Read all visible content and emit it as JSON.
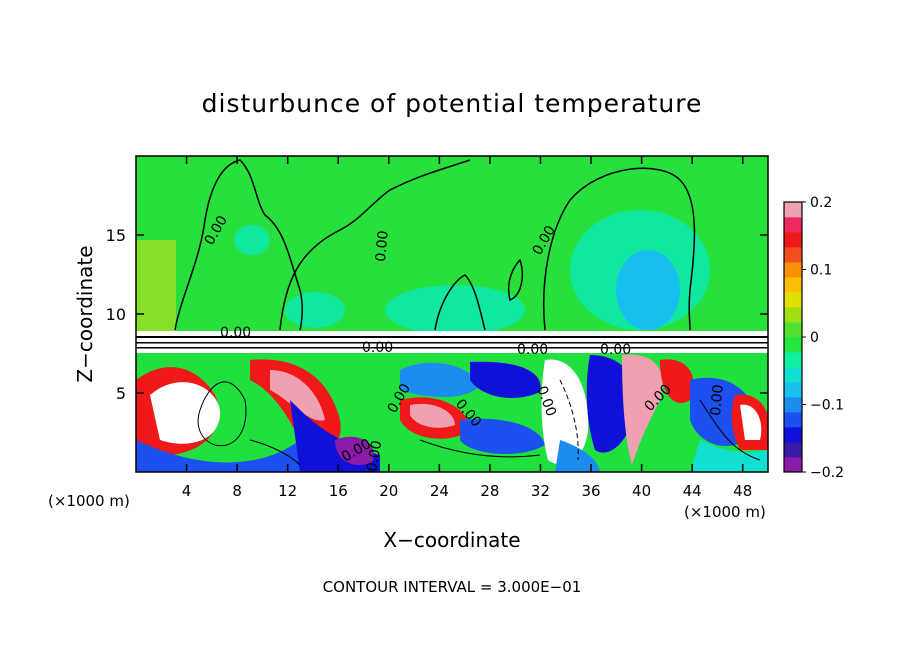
{
  "chart_data": {
    "type": "heatmap",
    "title": "disturbunce of potential temperature",
    "xlabel": "X−coordinate",
    "ylabel": "Z−coordinate",
    "x_unit_left": "(×1000 m)",
    "x_unit_right": "(×1000 m)",
    "footer": "CONTOUR INTERVAL = 3.000E−01",
    "xlim": [
      0,
      50
    ],
    "ylim": [
      0,
      20
    ],
    "x_ticks": [
      4,
      8,
      12,
      16,
      20,
      24,
      28,
      32,
      36,
      40,
      44,
      48
    ],
    "x_tick_labels": [
      "4",
      "8",
      "12",
      "16",
      "20",
      "24",
      "28",
      "32",
      "36",
      "40",
      "44",
      "48"
    ],
    "y_ticks": [
      5,
      10,
      15
    ],
    "y_tick_labels": [
      "5",
      "10",
      "15"
    ],
    "colorbar": {
      "range": [
        -0.2,
        0.2
      ],
      "tick_values": [
        0.2,
        0.1,
        0,
        -0.1,
        -0.2
      ],
      "tick_labels": [
        "0.2",
        "0.1",
        "0",
        "−0.1",
        "−0.2"
      ],
      "colors": [
        "#8a1aa8",
        "#3a1aa8",
        "#1010d8",
        "#1c50f0",
        "#1c8cf0",
        "#18c0f0",
        "#10e0d0",
        "#10f0a0",
        "#20e840",
        "#50e030",
        "#a0e010",
        "#e0e000",
        "#f8c000",
        "#f89000",
        "#f05020",
        "#f01818",
        "#f02860",
        "#f0a0b0"
      ]
    },
    "contour_labels": [
      "0.00",
      "0.00",
      "0.00",
      "0.00",
      "0.00",
      "0.00",
      "0.00",
      "0.00",
      "0.00",
      "0.00",
      "0.00",
      "0.00",
      "0.00",
      "0.00"
    ]
  }
}
